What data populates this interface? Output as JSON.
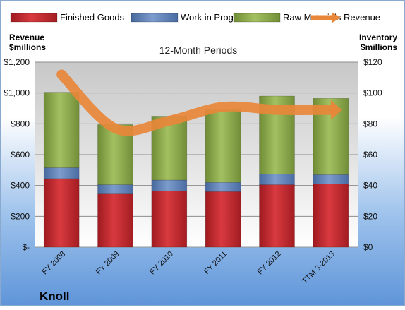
{
  "chart_data": {
    "type": "bar",
    "stacked": true,
    "title": "12-Month Periods",
    "company": "Knoll",
    "left_axis_label": [
      "Revenue",
      "$millions"
    ],
    "right_axis_label": [
      "Inventory",
      "$millions"
    ],
    "left_axis": {
      "min": 0,
      "max": 1200,
      "ticks": [
        {
          "value": 0,
          "label": "$-"
        },
        {
          "value": 200,
          "label": "$200"
        },
        {
          "value": 400,
          "label": "$400"
        },
        {
          "value": 600,
          "label": "$600"
        },
        {
          "value": 800,
          "label": "$800"
        },
        {
          "value": 1000,
          "label": "$1,000"
        },
        {
          "value": 1200,
          "label": "$1,200"
        }
      ]
    },
    "right_axis": {
      "min": 0,
      "max": 120,
      "ticks": [
        {
          "value": 0,
          "label": "$0"
        },
        {
          "value": 20,
          "label": "$20"
        },
        {
          "value": 40,
          "label": "$40"
        },
        {
          "value": 60,
          "label": "$60"
        },
        {
          "value": 80,
          "label": "$80"
        },
        {
          "value": 100,
          "label": "$100"
        },
        {
          "value": 120,
          "label": "$120"
        }
      ]
    },
    "categories": [
      "FY 2008",
      "FY 2009",
      "FY 2010",
      "FY 2011",
      "FY 2012",
      "TTM 3-2013"
    ],
    "series": [
      {
        "name": "Finished Goods",
        "axis": "right",
        "color": "#c0272d",
        "values": [
          44.5,
          34.5,
          36.5,
          36,
          40.5,
          41
        ]
      },
      {
        "name": "Work in Progress",
        "axis": "right",
        "color": "#5b7fba",
        "values": [
          7,
          6,
          7,
          6,
          7,
          6
        ]
      },
      {
        "name": "Raw Materials",
        "axis": "right",
        "color": "#8cab4c",
        "values": [
          49,
          39,
          41.5,
          47,
          50.5,
          49.5
        ]
      },
      {
        "name": "Revenue",
        "axis": "left",
        "type": "line",
        "color": "#e8873a",
        "values": [
          1120,
          770,
          820,
          910,
          890,
          890
        ]
      }
    ],
    "grid": true,
    "legend": "top"
  }
}
